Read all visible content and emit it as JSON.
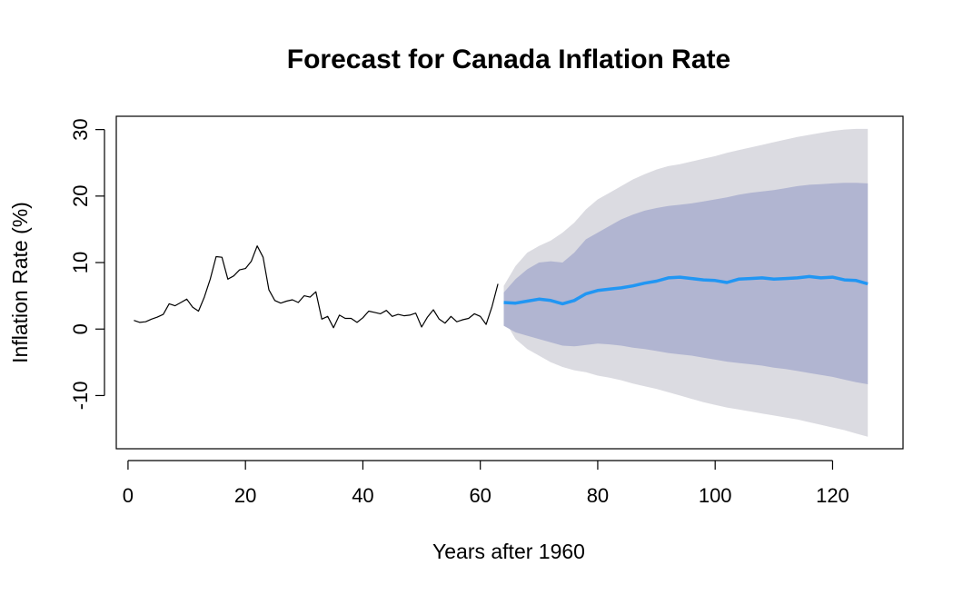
{
  "chart_data": {
    "type": "line",
    "title": "Forecast for Canada Inflation Rate",
    "xlabel": "Years after 1960",
    "ylabel": "Inflation Rate (%)",
    "xlim": [
      -2,
      132
    ],
    "ylim": [
      -18,
      32
    ],
    "x_ticks": [
      0,
      20,
      40,
      60,
      80,
      100,
      120
    ],
    "y_ticks": [
      -10,
      0,
      10,
      20,
      30
    ],
    "grid": false,
    "colors": {
      "history": "#000000",
      "forecast": "#2196F3",
      "band_80": "#B1B5D1",
      "band_95": "#DBDBE1"
    },
    "history": {
      "x": [
        1,
        2,
        3,
        4,
        5,
        6,
        7,
        8,
        9,
        10,
        11,
        12,
        13,
        14,
        15,
        16,
        17,
        18,
        19,
        20,
        21,
        22,
        23,
        24,
        25,
        26,
        27,
        28,
        29,
        30,
        31,
        32,
        33,
        34,
        35,
        36,
        37,
        38,
        39,
        40,
        41,
        42,
        43,
        44,
        45,
        46,
        47,
        48,
        49,
        50,
        51,
        52,
        53,
        54,
        55,
        56,
        57,
        58,
        59,
        60,
        61,
        62,
        63
      ],
      "y": [
        1.3,
        1.0,
        1.1,
        1.5,
        1.8,
        2.2,
        3.8,
        3.5,
        4.0,
        4.5,
        3.3,
        2.7,
        4.8,
        7.5,
        10.9,
        10.8,
        7.5,
        8.0,
        8.9,
        9.1,
        10.2,
        12.5,
        10.8,
        5.9,
        4.3,
        3.9,
        4.2,
        4.4,
        4.0,
        5.0,
        4.8,
        5.6,
        1.5,
        1.9,
        0.2,
        2.1,
        1.6,
        1.6,
        1.0,
        1.7,
        2.7,
        2.5,
        2.3,
        2.8,
        1.9,
        2.2,
        2.0,
        2.1,
        2.4,
        0.3,
        1.8,
        2.9,
        1.5,
        0.9,
        1.9,
        1.1,
        1.4,
        1.6,
        2.3,
        1.9,
        0.7,
        3.4,
        6.8
      ]
    },
    "forecast": {
      "x": [
        64,
        66,
        68,
        70,
        72,
        74,
        76,
        78,
        80,
        82,
        84,
        86,
        88,
        90,
        92,
        94,
        96,
        98,
        100,
        102,
        104,
        106,
        108,
        110,
        112,
        114,
        116,
        118,
        120,
        122,
        124,
        126
      ],
      "mean": [
        4.0,
        3.9,
        4.2,
        4.5,
        4.3,
        3.8,
        4.3,
        5.3,
        5.8,
        6.0,
        6.2,
        6.5,
        6.9,
        7.2,
        7.7,
        7.8,
        7.6,
        7.4,
        7.3,
        7.0,
        7.5,
        7.6,
        7.7,
        7.5,
        7.6,
        7.7,
        7.9,
        7.7,
        7.8,
        7.4,
        7.3,
        6.8
      ],
      "lo80": [
        0.5,
        -0.5,
        -1.0,
        -1.5,
        -2.0,
        -2.5,
        -2.6,
        -2.4,
        -2.2,
        -2.3,
        -2.5,
        -2.8,
        -3.0,
        -3.3,
        -3.6,
        -3.8,
        -4.0,
        -4.3,
        -4.6,
        -4.9,
        -5.1,
        -5.3,
        -5.5,
        -5.8,
        -6.0,
        -6.3,
        -6.6,
        -6.9,
        -7.2,
        -7.6,
        -8.0,
        -8.3
      ],
      "hi80": [
        5.5,
        7.5,
        9.0,
        10.0,
        10.2,
        10.0,
        11.5,
        13.5,
        14.5,
        15.5,
        16.5,
        17.2,
        17.8,
        18.2,
        18.5,
        18.7,
        18.9,
        19.2,
        19.5,
        19.8,
        20.2,
        20.5,
        20.7,
        20.9,
        21.2,
        21.5,
        21.7,
        21.8,
        21.9,
        22.0,
        22.0,
        21.9
      ],
      "lo95": [
        1.5,
        -1.5,
        -3.0,
        -4.0,
        -5.0,
        -5.7,
        -6.2,
        -6.5,
        -7.0,
        -7.3,
        -7.7,
        -8.2,
        -8.6,
        -9.0,
        -9.5,
        -10.0,
        -10.5,
        -11.0,
        -11.4,
        -11.8,
        -12.1,
        -12.4,
        -12.7,
        -13.0,
        -13.3,
        -13.6,
        -14.0,
        -14.4,
        -14.8,
        -15.2,
        -15.7,
        -16.2
      ],
      "hi95": [
        6.5,
        9.5,
        11.5,
        12.5,
        13.3,
        14.5,
        16.0,
        18.0,
        19.5,
        20.5,
        21.5,
        22.5,
        23.3,
        24.0,
        24.5,
        24.8,
        25.2,
        25.6,
        26.0,
        26.5,
        26.9,
        27.3,
        27.7,
        28.1,
        28.5,
        28.9,
        29.2,
        29.5,
        29.8,
        30.0,
        30.1,
        30.1
      ]
    }
  }
}
